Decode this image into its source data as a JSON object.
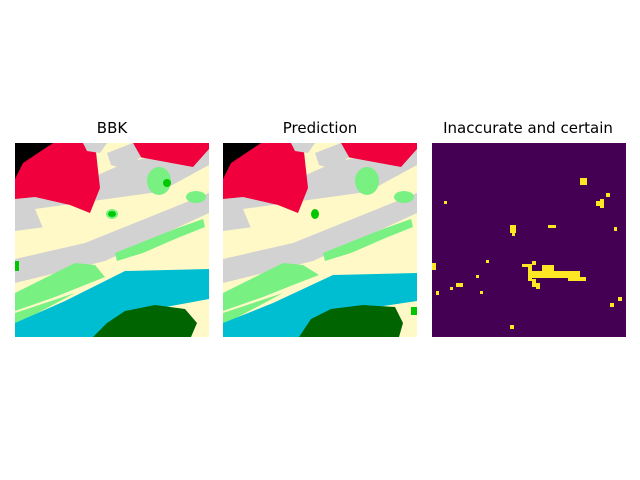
{
  "figure": {
    "panels": [
      {
        "title": "BBK"
      },
      {
        "title": "Prediction"
      },
      {
        "title": "Inaccurate and certain"
      }
    ],
    "colors": {
      "background_panel3": "#440154",
      "highlight_panel3": "#fde725",
      "black": "#000000",
      "red_building": "#f0003c",
      "light_yellow_ground": "#fff9c8",
      "gray_road": "#d2d2d2",
      "light_green_vegetation": "#78f082",
      "bright_green_tree": "#00c800",
      "cyan_water": "#00bed2",
      "dark_green_forest": "#006400"
    }
  }
}
